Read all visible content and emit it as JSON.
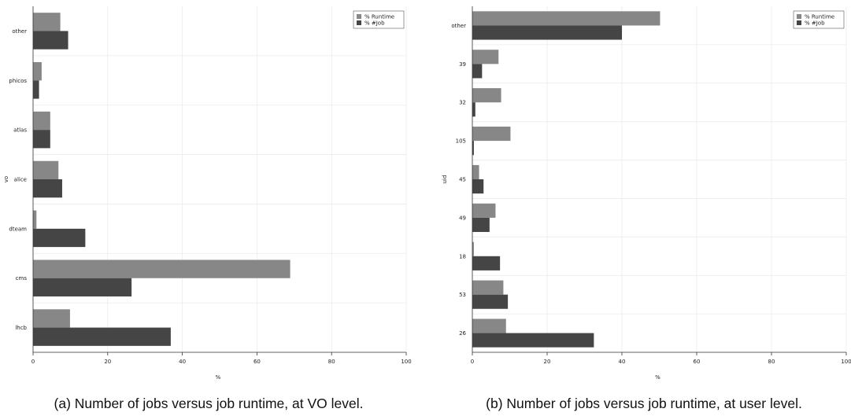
{
  "charts": {
    "a": {
      "caption": "(a) Number of jobs versus job runtime, at VO level.",
      "chart_data": {
        "type": "bar",
        "orientation": "horizontal",
        "xlabel": "%",
        "ylabel": "vo",
        "xlim": [
          0,
          100
        ],
        "xticks": [
          "0",
          "20",
          "40",
          "60",
          "80",
          "100"
        ],
        "grid": true,
        "legend_position": "top-right",
        "categories": [
          "other",
          "phicos",
          "atlas",
          "alice",
          "dteam",
          "cms",
          "lhcb"
        ],
        "series": [
          {
            "name": "% Runtime",
            "color": "#878787",
            "values": [
              7.3,
              2.3,
              4.6,
              6.8,
              0.9,
              68.9,
              9.9
            ]
          },
          {
            "name": "% #Job",
            "color": "#454545",
            "values": [
              9.4,
              1.6,
              4.6,
              7.8,
              14.0,
              26.4,
              36.9
            ]
          }
        ]
      }
    },
    "b": {
      "caption": "(b) Number of jobs versus job runtime, at user level.",
      "chart_data": {
        "type": "bar",
        "orientation": "horizontal",
        "xlabel": "%",
        "ylabel": "uid",
        "xlim": [
          0,
          100
        ],
        "xticks": [
          "0",
          "20",
          "40",
          "60",
          "80",
          "100"
        ],
        "grid": true,
        "legend_position": "top-right",
        "categories": [
          "other",
          "39",
          "32",
          "105",
          "45",
          "49",
          "18",
          "53",
          "26"
        ],
        "series": [
          {
            "name": "% Runtime",
            "color": "#878787",
            "values": [
              50.2,
              7.0,
              7.7,
              10.2,
              1.8,
              6.2,
              0.4,
              8.3,
              9.0
            ]
          },
          {
            "name": "% #Job",
            "color": "#454545",
            "values": [
              40.0,
              2.6,
              0.8,
              0.4,
              3.0,
              4.6,
              7.4,
              9.5,
              32.5
            ]
          }
        ]
      }
    }
  }
}
